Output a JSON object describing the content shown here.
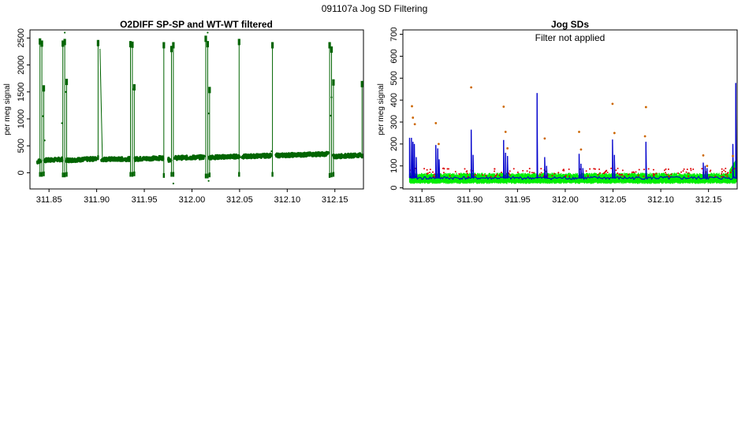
{
  "page_title": "091107a   Jog SD Filtering",
  "chart_data": [
    {
      "type": "scatter",
      "title": "O2DIFF SP-SP and WT-WT filtered",
      "xlabel": "",
      "ylabel": "per meg signal",
      "xlim": [
        311.83,
        312.18
      ],
      "ylim": [
        -300,
        2650
      ],
      "x_ticks": [
        "311.85",
        "311.90",
        "311.95",
        "312.00",
        "312.05",
        "312.10",
        "312.15"
      ],
      "y_ticks": [
        "0",
        "500",
        "1000",
        "1500",
        "2000",
        "2500"
      ],
      "grid": false,
      "colors": {
        "points": "#006400",
        "lines": "#006400"
      },
      "baseline_segments": [
        {
          "x": [
            311.8375,
            311.841
          ],
          "y": [
            200,
            230
          ]
        },
        {
          "x": [
            311.845,
            311.864
          ],
          "y": [
            230,
            250
          ]
        },
        {
          "x": [
            311.868,
            311.9
          ],
          "y": [
            230,
            260
          ]
        },
        {
          "x": [
            311.905,
            311.935
          ],
          "y": [
            250,
            255
          ]
        },
        {
          "x": [
            311.94,
            311.97
          ],
          "y": [
            255,
            275
          ]
        },
        {
          "x": [
            311.975,
            311.978
          ],
          "y": [
            240,
            245
          ]
        },
        {
          "x": [
            311.982,
            312.013
          ],
          "y": [
            275,
            290
          ]
        },
        {
          "x": [
            312.018,
            312.05
          ],
          "y": [
            285,
            305
          ]
        },
        {
          "x": [
            312.052,
            312.083
          ],
          "y": [
            300,
            320
          ]
        },
        {
          "x": [
            312.088,
            312.143
          ],
          "y": [
            320,
            350
          ]
        },
        {
          "x": [
            312.148,
            312.178
          ],
          "y": [
            300,
            330
          ]
        }
      ],
      "jogs": [
        {
          "x": 311.8405,
          "top": 2450,
          "bottom": -30
        },
        {
          "x": 311.8425,
          "top": 2410,
          "bottom": -30
        },
        {
          "x": 311.8445,
          "top": 1580,
          "bottom": -20
        },
        {
          "x": 311.8645,
          "top": 2410,
          "bottom": -40
        },
        {
          "x": 311.8665,
          "top": 2440,
          "bottom": -40
        },
        {
          "x": 311.8685,
          "top": 1700,
          "bottom": -30
        },
        {
          "x": 311.9015,
          "top": 2420,
          "bottom": 280
        },
        {
          "x": 311.9355,
          "top": 2400,
          "bottom": -30
        },
        {
          "x": 311.9375,
          "top": 2390,
          "bottom": -30
        },
        {
          "x": 311.9395,
          "top": 1600,
          "bottom": -20
        },
        {
          "x": 311.9705,
          "top": 2380,
          "bottom": -50
        },
        {
          "x": 311.9785,
          "top": 2310,
          "bottom": -30
        },
        {
          "x": 311.9805,
          "top": 2380,
          "bottom": -30
        },
        {
          "x": 312.0145,
          "top": 2500,
          "bottom": -60
        },
        {
          "x": 312.0165,
          "top": 2400,
          "bottom": -60
        },
        {
          "x": 312.0185,
          "top": 1550,
          "bottom": -40
        },
        {
          "x": 312.0495,
          "top": 2440,
          "bottom": -30
        },
        {
          "x": 312.0845,
          "top": 2380,
          "bottom": -30
        },
        {
          "x": 312.1445,
          "top": 2380,
          "bottom": -50
        },
        {
          "x": 312.1465,
          "top": 2300,
          "bottom": -40
        },
        {
          "x": 312.1485,
          "top": 1690,
          "bottom": -30
        },
        {
          "x": 312.1785,
          "top": 1660,
          "bottom": 310
        }
      ],
      "ramp": {
        "x": [
          311.9035,
          311.906
        ],
        "y": [
          2300,
          270
        ]
      },
      "outliers": [
        {
          "x": 311.8395,
          "y": 220
        },
        {
          "x": 311.8435,
          "y": 1050
        },
        {
          "x": 311.8455,
          "y": 600
        },
        {
          "x": 311.8635,
          "y": 920
        },
        {
          "x": 311.8675,
          "y": 1500
        },
        {
          "x": 311.8665,
          "y": 2600
        },
        {
          "x": 311.9385,
          "y": 1550
        },
        {
          "x": 311.9805,
          "y": -200
        },
        {
          "x": 312.0165,
          "y": 2600
        },
        {
          "x": 312.0175,
          "y": 1100
        },
        {
          "x": 312.0175,
          "y": -150
        },
        {
          "x": 312.0835,
          "y": 400
        },
        {
          "x": 312.1465,
          "y": 1400
        },
        {
          "x": 312.1455,
          "y": 1060
        }
      ]
    },
    {
      "type": "line",
      "title": "Jog SDs",
      "annotation": "Filter not applied",
      "xlabel": "",
      "ylabel": "per meg signal",
      "xlim": [
        311.83,
        312.18
      ],
      "ylim": [
        -5,
        720
      ],
      "x_ticks": [
        "311.85",
        "311.90",
        "311.95",
        "312.00",
        "312.05",
        "312.10",
        "312.15"
      ],
      "y_ticks": [
        "0",
        "100",
        "200",
        "300",
        "400",
        "500",
        "600",
        "700"
      ],
      "grid": false,
      "colors": {
        "green_band": "#00ee00",
        "blue_line": "#0000cc",
        "red_points": "#dd0000",
        "orange_points": "#cc6600"
      },
      "green_band": {
        "x_range": [
          311.837,
          312.179
        ],
        "lower": 22,
        "upper": 62,
        "tail_rise": [
          {
            "x": 312.172,
            "y": 80
          },
          {
            "x": 312.179,
            "y": 130
          }
        ]
      },
      "blue_baseline": {
        "x_range": [
          311.837,
          312.179
        ],
        "level": 45
      },
      "blue_spikes": [
        {
          "x": 311.837,
          "y": 228
        },
        {
          "x": 311.839,
          "y": 228
        },
        {
          "x": 311.8405,
          "y": 210
        },
        {
          "x": 311.842,
          "y": 200
        },
        {
          "x": 311.844,
          "y": 140
        },
        {
          "x": 311.8645,
          "y": 195
        },
        {
          "x": 311.8665,
          "y": 180
        },
        {
          "x": 311.868,
          "y": 130
        },
        {
          "x": 311.9015,
          "y": 265
        },
        {
          "x": 311.9035,
          "y": 150
        },
        {
          "x": 311.9355,
          "y": 218
        },
        {
          "x": 311.9375,
          "y": 160
        },
        {
          "x": 311.9395,
          "y": 145
        },
        {
          "x": 311.9705,
          "y": 432
        },
        {
          "x": 311.9785,
          "y": 140
        },
        {
          "x": 311.9805,
          "y": 100
        },
        {
          "x": 312.0145,
          "y": 155
        },
        {
          "x": 312.0165,
          "y": 110
        },
        {
          "x": 312.0185,
          "y": 90
        },
        {
          "x": 312.0495,
          "y": 220
        },
        {
          "x": 312.0515,
          "y": 150
        },
        {
          "x": 312.0845,
          "y": 210
        },
        {
          "x": 312.1445,
          "y": 115
        },
        {
          "x": 312.1465,
          "y": 100
        },
        {
          "x": 312.1485,
          "y": 90
        },
        {
          "x": 312.1755,
          "y": 200
        },
        {
          "x": 312.1785,
          "y": 478
        }
      ],
      "orange_points": [
        {
          "x": 311.8395,
          "y": 372
        },
        {
          "x": 311.8405,
          "y": 320
        },
        {
          "x": 311.8425,
          "y": 290
        },
        {
          "x": 311.8645,
          "y": 295
        },
        {
          "x": 311.8675,
          "y": 200
        },
        {
          "x": 311.9015,
          "y": 458
        },
        {
          "x": 311.9355,
          "y": 370
        },
        {
          "x": 311.9375,
          "y": 255
        },
        {
          "x": 311.9395,
          "y": 180
        },
        {
          "x": 311.9785,
          "y": 225
        },
        {
          "x": 312.0145,
          "y": 255
        },
        {
          "x": 312.0165,
          "y": 175
        },
        {
          "x": 312.0495,
          "y": 383
        },
        {
          "x": 312.0515,
          "y": 250
        },
        {
          "x": 312.0845,
          "y": 368
        },
        {
          "x": 312.0835,
          "y": 235
        },
        {
          "x": 312.1445,
          "y": 148
        },
        {
          "x": 312.1485,
          "y": 100
        },
        {
          "x": 312.1755,
          "y": 145
        }
      ]
    }
  ]
}
